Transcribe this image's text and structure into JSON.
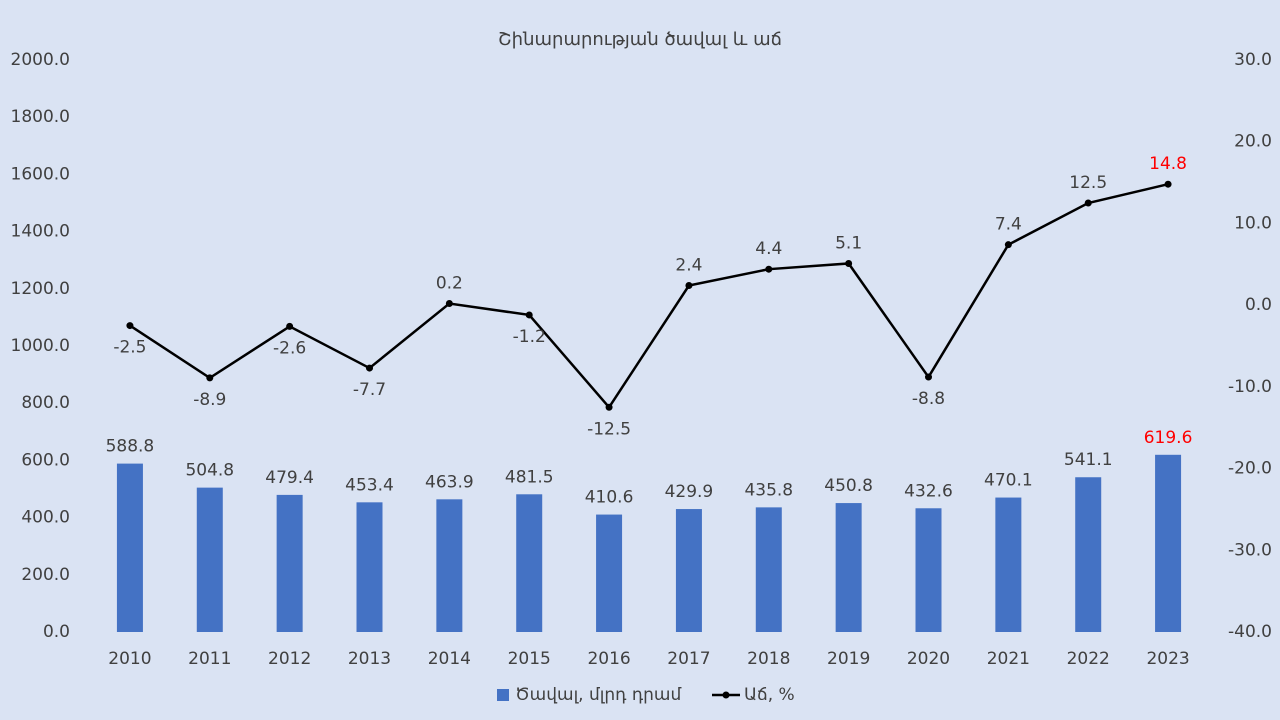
{
  "chart_data": {
    "type": "bar-line",
    "title": "Շինարարության ծավալ և աճ",
    "categories": [
      "2010",
      "2011",
      "2012",
      "2013",
      "2014",
      "2015",
      "2016",
      "2017",
      "2018",
      "2019",
      "2020",
      "2021",
      "2022",
      "2023"
    ],
    "series": [
      {
        "name": "Ծավալ, մլրդ դրամ",
        "type": "bar",
        "color": "#4472c4",
        "axis": "y",
        "values": [
          588.8,
          504.8,
          479.4,
          453.4,
          463.9,
          481.5,
          410.6,
          429.9,
          435.8,
          450.8,
          432.6,
          470.1,
          541.1,
          619.6
        ]
      },
      {
        "name": "Աճ, %",
        "type": "line",
        "color": "#000000",
        "axis": "y2",
        "values": [
          -2.5,
          -8.9,
          -2.6,
          -7.7,
          0.2,
          -1.2,
          -12.5,
          2.4,
          4.4,
          5.1,
          -8.8,
          7.4,
          12.5,
          14.8
        ]
      }
    ],
    "label_color": "#404040",
    "last_label_color": "#ff0000",
    "ylim": [
      0,
      2000
    ],
    "yticks": [
      {
        "value": 0,
        "label": "0.0"
      },
      {
        "value": 200,
        "label": "200.0"
      },
      {
        "value": 400,
        "label": "400.0"
      },
      {
        "value": 600,
        "label": "600.0"
      },
      {
        "value": 800,
        "label": "800.0"
      },
      {
        "value": 1000,
        "label": "1000.0"
      },
      {
        "value": 1200,
        "label": "1200.0"
      },
      {
        "value": 1400,
        "label": "1400.0"
      },
      {
        "value": 1600,
        "label": "1600.0"
      },
      {
        "value": 1800,
        "label": "1800.0"
      },
      {
        "value": 2000,
        "label": "2000.0"
      }
    ],
    "y2lim": [
      -40,
      30
    ],
    "y2ticks": [
      {
        "value": -40,
        "label": "-40.0"
      },
      {
        "value": -30,
        "label": "-30.0"
      },
      {
        "value": -20,
        "label": "-20.0"
      },
      {
        "value": -10,
        "label": "-10.0"
      },
      {
        "value": 0,
        "label": "0.0"
      },
      {
        "value": 10,
        "label": "10.0"
      },
      {
        "value": 20,
        "label": "20.0"
      },
      {
        "value": 30,
        "label": "30.0"
      }
    ],
    "grid": false,
    "legend": "bottom"
  }
}
